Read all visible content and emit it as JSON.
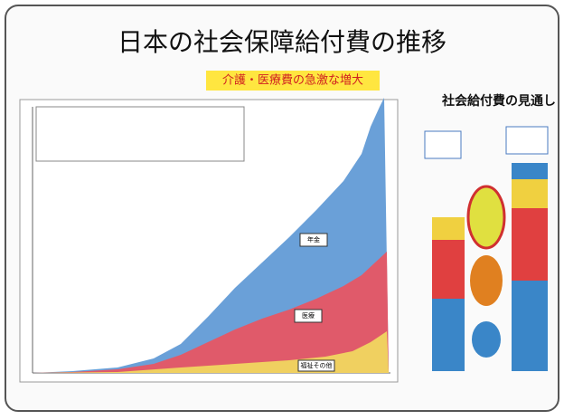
{
  "title": "日本の社会保障給付費の推移",
  "subtitle": "介護・医療費の急激な増大",
  "side_title": "社会給付費の見通し",
  "labels": [
    "年金",
    "医療",
    "福祉その他"
  ]
}
